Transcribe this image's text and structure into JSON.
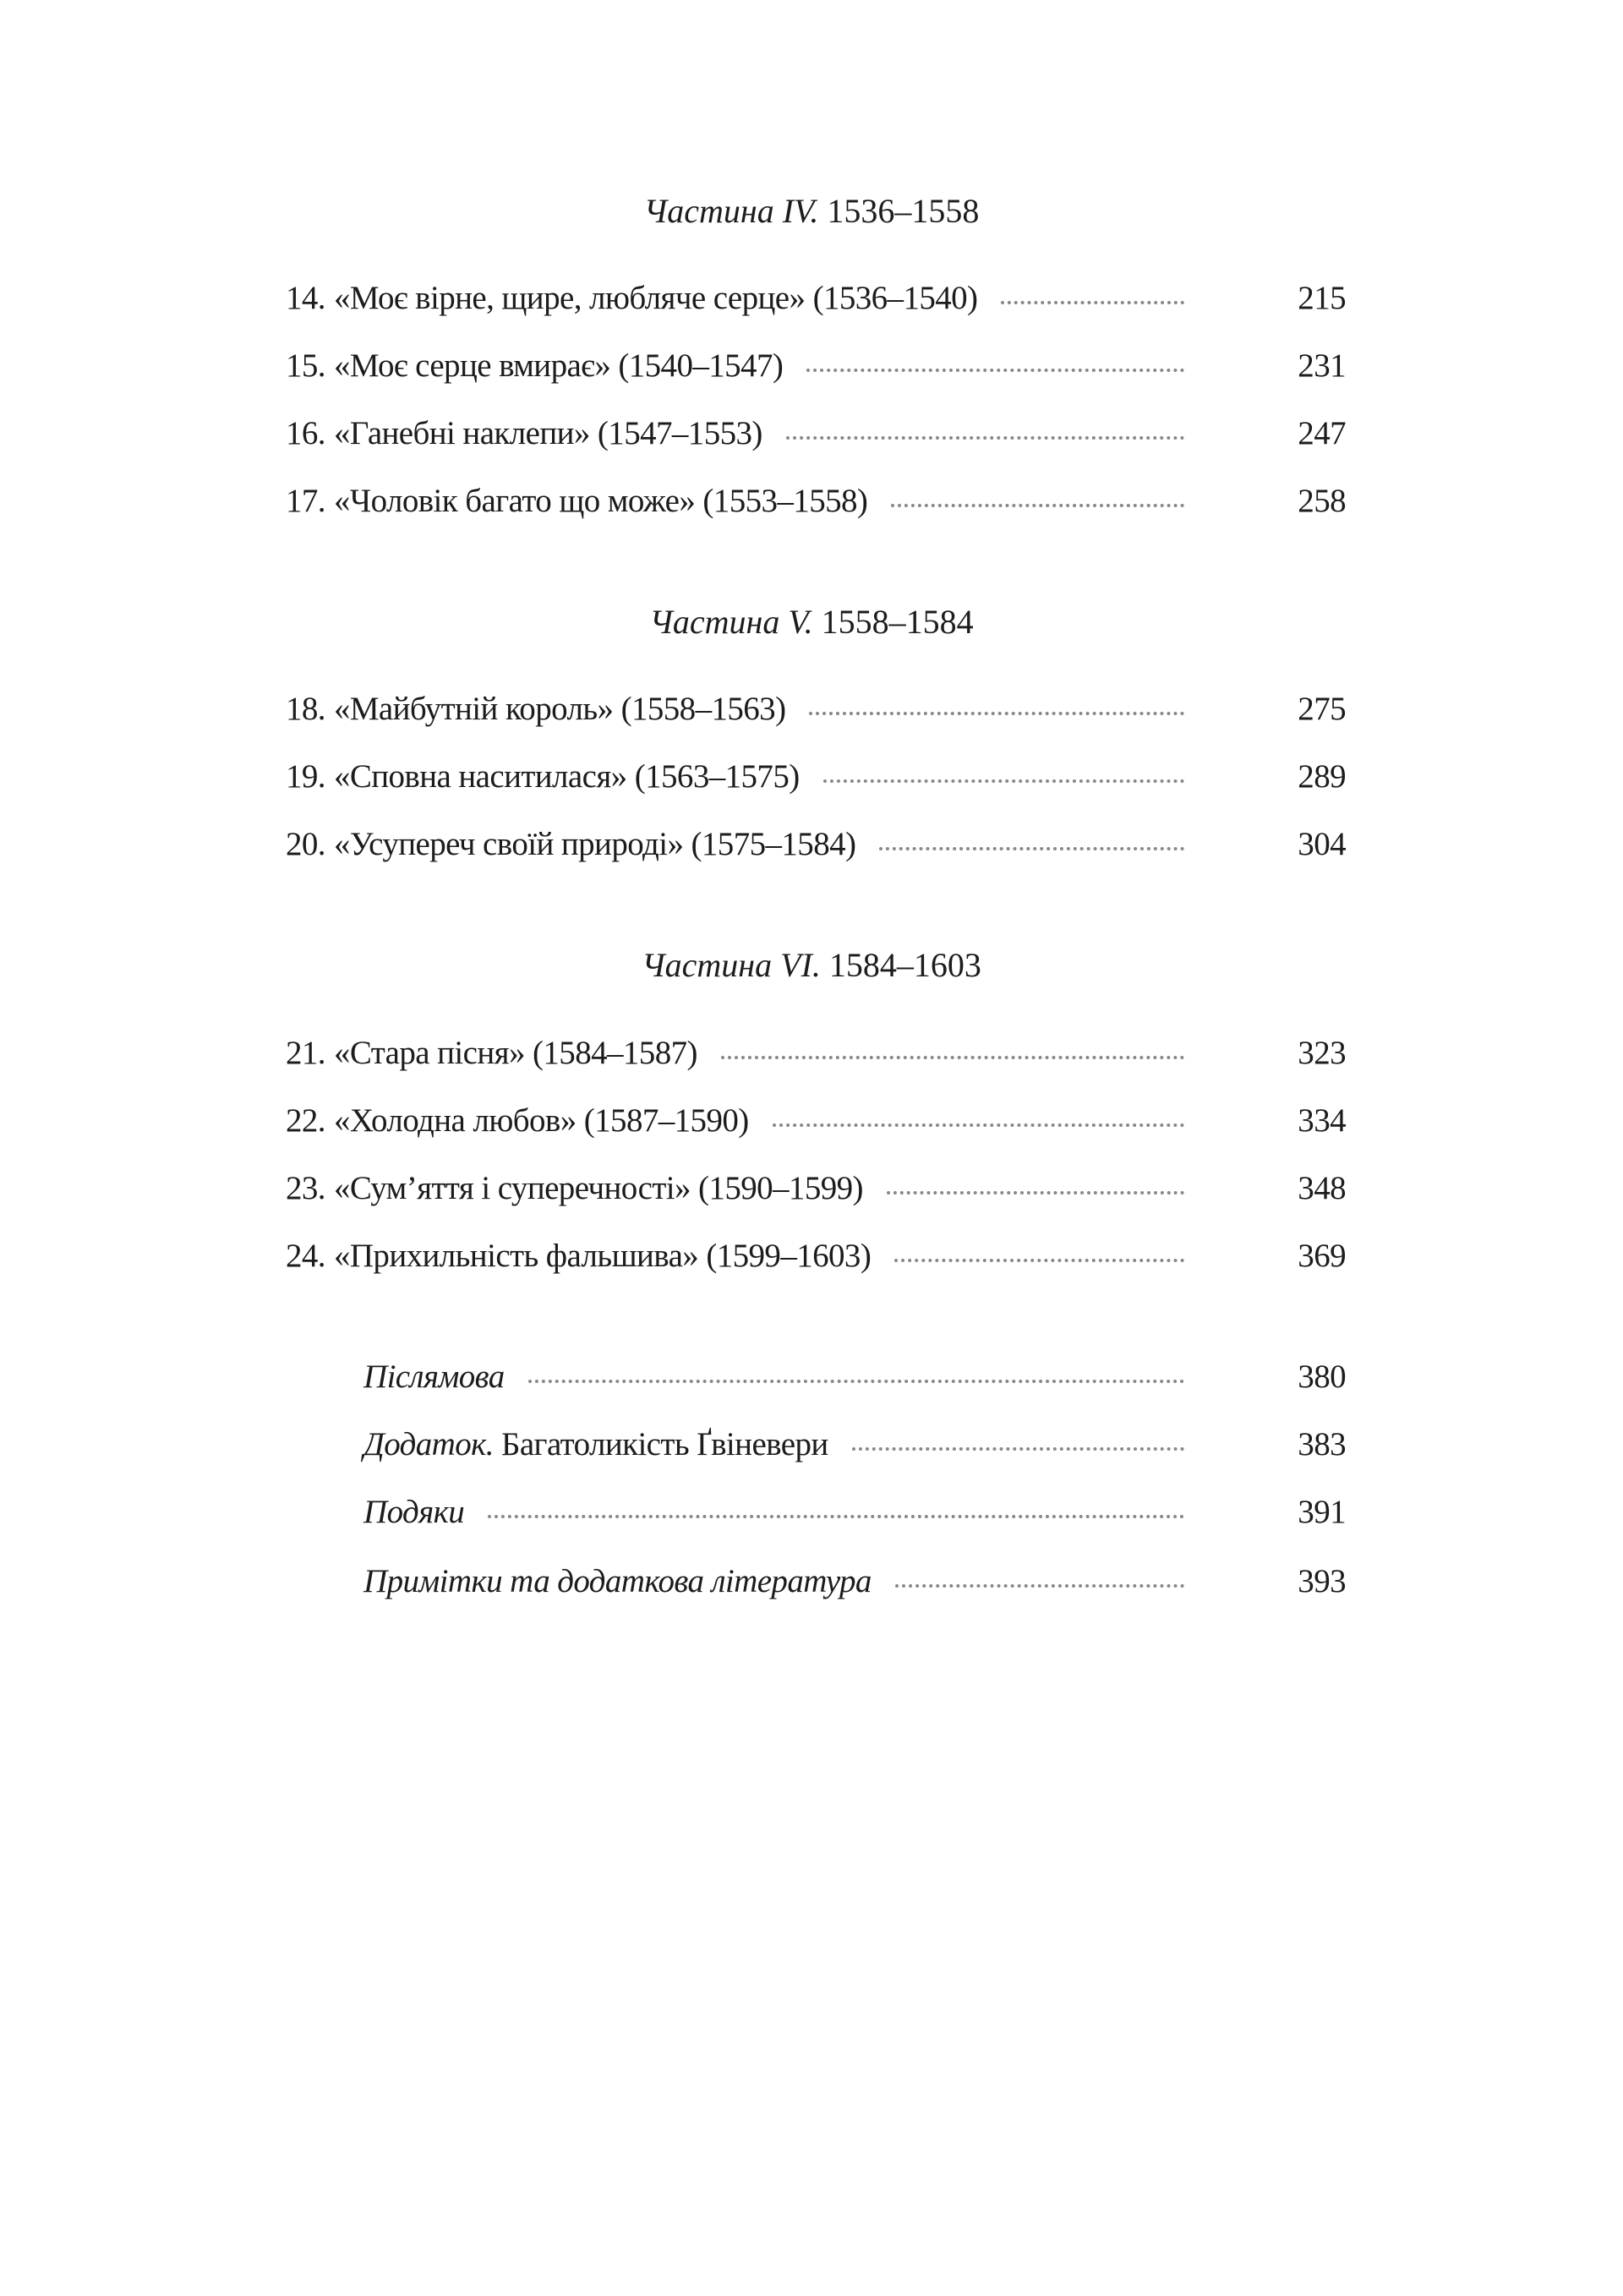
{
  "parts": [
    {
      "label": "Частина IV.",
      "years": "1536–1558",
      "entries": [
        {
          "num": "14.",
          "title": "«Моє вірне, щире, любляче серце» (1536–1540)",
          "page": "215"
        },
        {
          "num": "15.",
          "title": "«Моє серце вмирає» (1540–1547)",
          "page": "231"
        },
        {
          "num": "16.",
          "title": "«Ганебні наклепи» (1547–1553)",
          "page": "247"
        },
        {
          "num": "17.",
          "title": "«Чоловік багато що може» (1553–1558)",
          "page": "258"
        }
      ]
    },
    {
      "label": "Частина V.",
      "years": "1558–1584",
      "entries": [
        {
          "num": "18.",
          "title": "«Майбутній король» (1558–1563)",
          "page": "275"
        },
        {
          "num": "19.",
          "title": "«Сповна наситилася» (1563–1575)",
          "page": "289"
        },
        {
          "num": "20.",
          "title": "«Усупереч своїй природі» (1575–1584)",
          "page": "304"
        }
      ]
    },
    {
      "label": "Частина VI.",
      "years": "1584–1603",
      "entries": [
        {
          "num": "21.",
          "title": "«Стара пісня» (1584–1587)",
          "page": "323"
        },
        {
          "num": "22.",
          "title": "«Холодна любов» (1587–1590)",
          "page": "334"
        },
        {
          "num": "23.",
          "title": "«Сум’яття і суперечності» (1590–1599)",
          "page": "348"
        },
        {
          "num": "24.",
          "title": "«Прихильність фальшива» (1599–1603)",
          "page": "369"
        }
      ]
    }
  ],
  "back_matter": [
    {
      "italic": "Післямова",
      "rest": "",
      "page": "380"
    },
    {
      "italic": "Додаток.",
      "rest": " Багатоликість Ґвіневери",
      "page": "383"
    },
    {
      "italic": "Подяки",
      "rest": "",
      "page": "391"
    },
    {
      "italic": "Примітки та додаткова література",
      "rest": "",
      "page": "393"
    }
  ]
}
